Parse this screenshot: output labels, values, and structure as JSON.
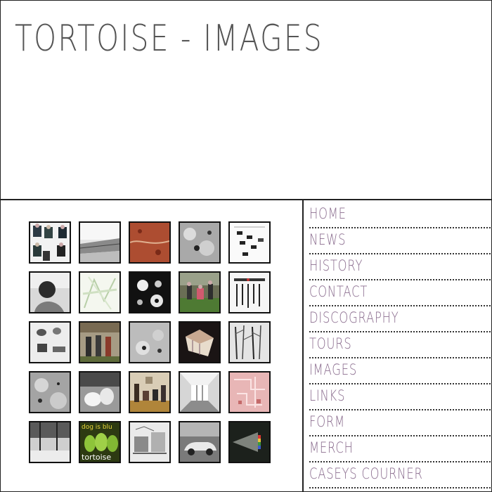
{
  "header": {
    "title": "TORTOISE - IMAGES"
  },
  "nav": {
    "items": [
      {
        "label": "HOME"
      },
      {
        "label": "NEWS"
      },
      {
        "label": "HISTORY"
      },
      {
        "label": "CONTACT"
      },
      {
        "label": "DISCOGRAPHY"
      },
      {
        "label": "TOURS"
      },
      {
        "label": "IMAGES"
      },
      {
        "label": "LINKS"
      },
      {
        "label": "FORM"
      },
      {
        "label": "MERCH"
      },
      {
        "label": "CASEYS COURNER"
      }
    ],
    "label_color": "#8a6c8e"
  },
  "gallery": {
    "thumbnails": [
      {
        "name": "band-collage"
      },
      {
        "name": "gray-landscape"
      },
      {
        "name": "rust-texture"
      },
      {
        "name": "gray-blobs"
      },
      {
        "name": "diagram-print"
      },
      {
        "name": "person-bw"
      },
      {
        "name": "green-sketch"
      },
      {
        "name": "dark-collage"
      },
      {
        "name": "band-outdoor"
      },
      {
        "name": "tools-print"
      },
      {
        "name": "objects-bw"
      },
      {
        "name": "band-sepia"
      },
      {
        "name": "gray-spots"
      },
      {
        "name": "cube-dark"
      },
      {
        "name": "winter-trees"
      },
      {
        "name": "gray-mottle"
      },
      {
        "name": "white-stuff"
      },
      {
        "name": "band-indoor"
      },
      {
        "name": "hall-bw"
      },
      {
        "name": "pink-circuit"
      },
      {
        "name": "warehouse-bw"
      },
      {
        "name": "green-album",
        "text_top": "dog is blu",
        "text_bottom": "tortoise"
      },
      {
        "name": "sketch-bw"
      },
      {
        "name": "car-bw"
      },
      {
        "name": "prism-dark"
      }
    ]
  }
}
